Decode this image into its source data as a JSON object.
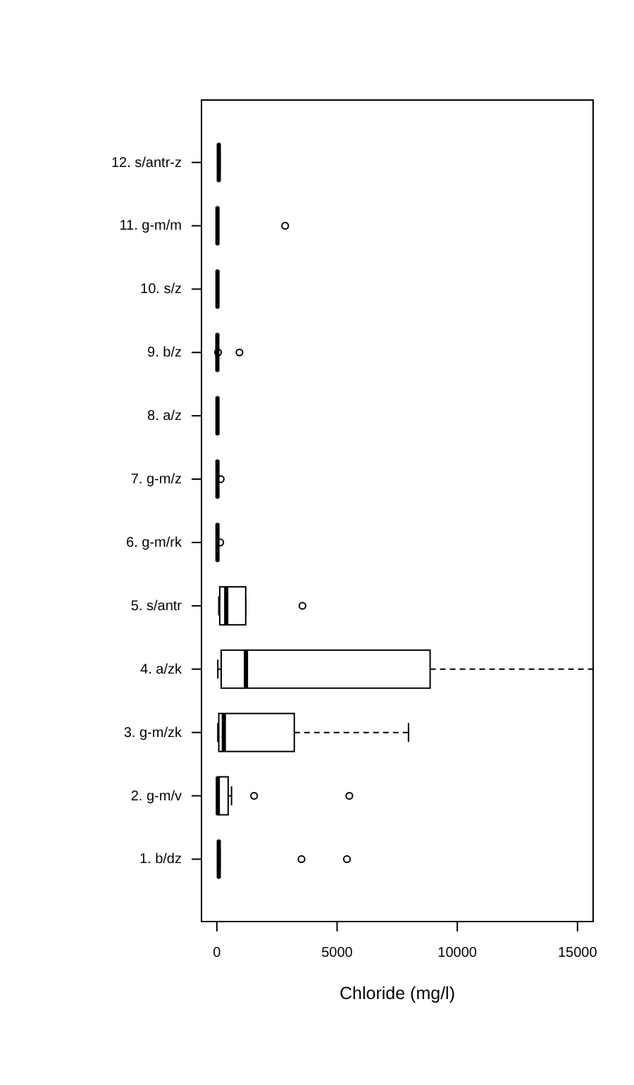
{
  "chart_data": {
    "type": "box",
    "orientation": "horizontal",
    "xlabel": "Chloride (mg/l)",
    "categories": [
      "12. s/antr-z",
      "11. g-m/m",
      "10. s/z",
      "9. b/z",
      "8. a/z",
      "7. g-m/z",
      "6. g-m/rk",
      "5. s/antr",
      "4. a/zk",
      "3. g-m/zk",
      "2. g-m/v",
      "1. b/dz"
    ],
    "boxes": [
      {
        "low": 40,
        "q1": 60,
        "median": 80,
        "q3": 100,
        "high": 130
      },
      {
        "low": 5,
        "q1": 10,
        "median": 25,
        "q3": 40,
        "high": 60,
        "outliers": [
          2840
        ]
      },
      {
        "low": 5,
        "q1": 10,
        "median": 25,
        "q3": 40,
        "high": 60
      },
      {
        "low": 5,
        "q1": 10,
        "median": 20,
        "q3": 25,
        "high": 30,
        "outliers": [
          50,
          940
        ]
      },
      {
        "low": 5,
        "q1": 10,
        "median": 25,
        "q3": 40,
        "high": 60
      },
      {
        "low": 5,
        "q1": 10,
        "median": 25,
        "q3": 40,
        "high": 60,
        "outliers": [
          160
        ]
      },
      {
        "low": 5,
        "q1": 10,
        "median": 25,
        "q3": 40,
        "high": 60,
        "outliers": [
          140
        ]
      },
      {
        "low": 80,
        "q1": 120,
        "median": 390,
        "q3": 1200,
        "high": 1200,
        "outliers": [
          3560
        ]
      },
      {
        "low": 40,
        "q1": 180,
        "median": 1210,
        "q3": 8870,
        "high": 15650
      },
      {
        "low": 40,
        "q1": 80,
        "median": 290,
        "q3": 3220,
        "high": 7970
      },
      {
        "low": 20,
        "q1": 20,
        "median": 40,
        "q3": 470,
        "high": 610,
        "outliers": [
          1550,
          5510
        ]
      },
      {
        "low": 40,
        "q1": 60,
        "median": 80,
        "q3": 100,
        "high": 130,
        "outliers": [
          3520,
          5410
        ]
      }
    ],
    "xlim": [
      -640,
      15650
    ],
    "xticks": [
      0,
      5000,
      10000,
      15000
    ]
  }
}
